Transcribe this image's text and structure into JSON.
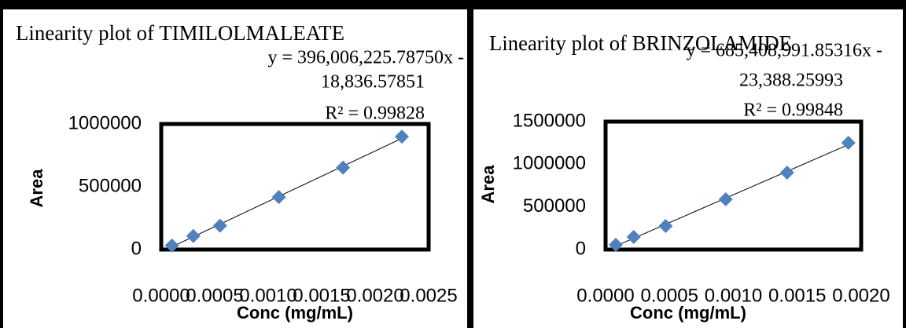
{
  "chart_data": [
    {
      "type": "scatter",
      "title": "Linearity plot of TIMILOLMALEATE",
      "equation": [
        "y = 396,006,225.78750x -",
        "18,836.57851"
      ],
      "r_squared": "R² = 0.99828",
      "x_label": "Conc (mg/mL)",
      "y_label": "Area",
      "x": [
        0.0001,
        0.0003,
        0.00055,
        0.0011,
        0.0017,
        0.00225
      ],
      "values": [
        32000,
        108000,
        190000,
        418000,
        652000,
        899000
      ],
      "color": "#4f81bd",
      "trendline": true,
      "xlim": [
        0,
        0.0025
      ],
      "xticks": [
        {
          "value": 0,
          "label": "0.0000"
        },
        {
          "value": 0.0005,
          "label": "0.0005"
        },
        {
          "value": 0.001,
          "label": "0.0010"
        },
        {
          "value": 0.0015,
          "label": "0.0015"
        },
        {
          "value": 0.002,
          "label": "0.0020"
        },
        {
          "value": 0.0025,
          "label": "0.0025"
        }
      ],
      "ylim": [
        0,
        1000000
      ],
      "yticks": [
        0,
        500000,
        1000000
      ],
      "grid": false
    },
    {
      "type": "scatter",
      "title": "Linearity plot of BRINZOLAMIDE",
      "equation": [
        "y = 685,408,991.85316x -",
        "23,388.25993"
      ],
      "r_squared": "R² = 0.99848",
      "x_label": "Conc (mg/mL)",
      "y_label": "Area",
      "x": [
        8e-05,
        0.00022,
        0.00047,
        0.00094,
        0.00142,
        0.0019
      ],
      "values": [
        55000,
        147000,
        276000,
        589000,
        902000,
        1251000
      ],
      "color": "#4f81bd",
      "trendline": true,
      "xlim": [
        0,
        0.002
      ],
      "xticks": [
        {
          "value": 0,
          "label": "0.0000"
        },
        {
          "value": 0.0005,
          "label": "0.0005"
        },
        {
          "value": 0.001,
          "label": "0.0010"
        },
        {
          "value": 0.0015,
          "label": "0.0015"
        },
        {
          "value": 0.002,
          "label": "0.0020"
        }
      ],
      "ylim": [
        0,
        1500000
      ],
      "yticks": [
        0,
        500000,
        1000000,
        1500000
      ],
      "grid": false
    }
  ]
}
